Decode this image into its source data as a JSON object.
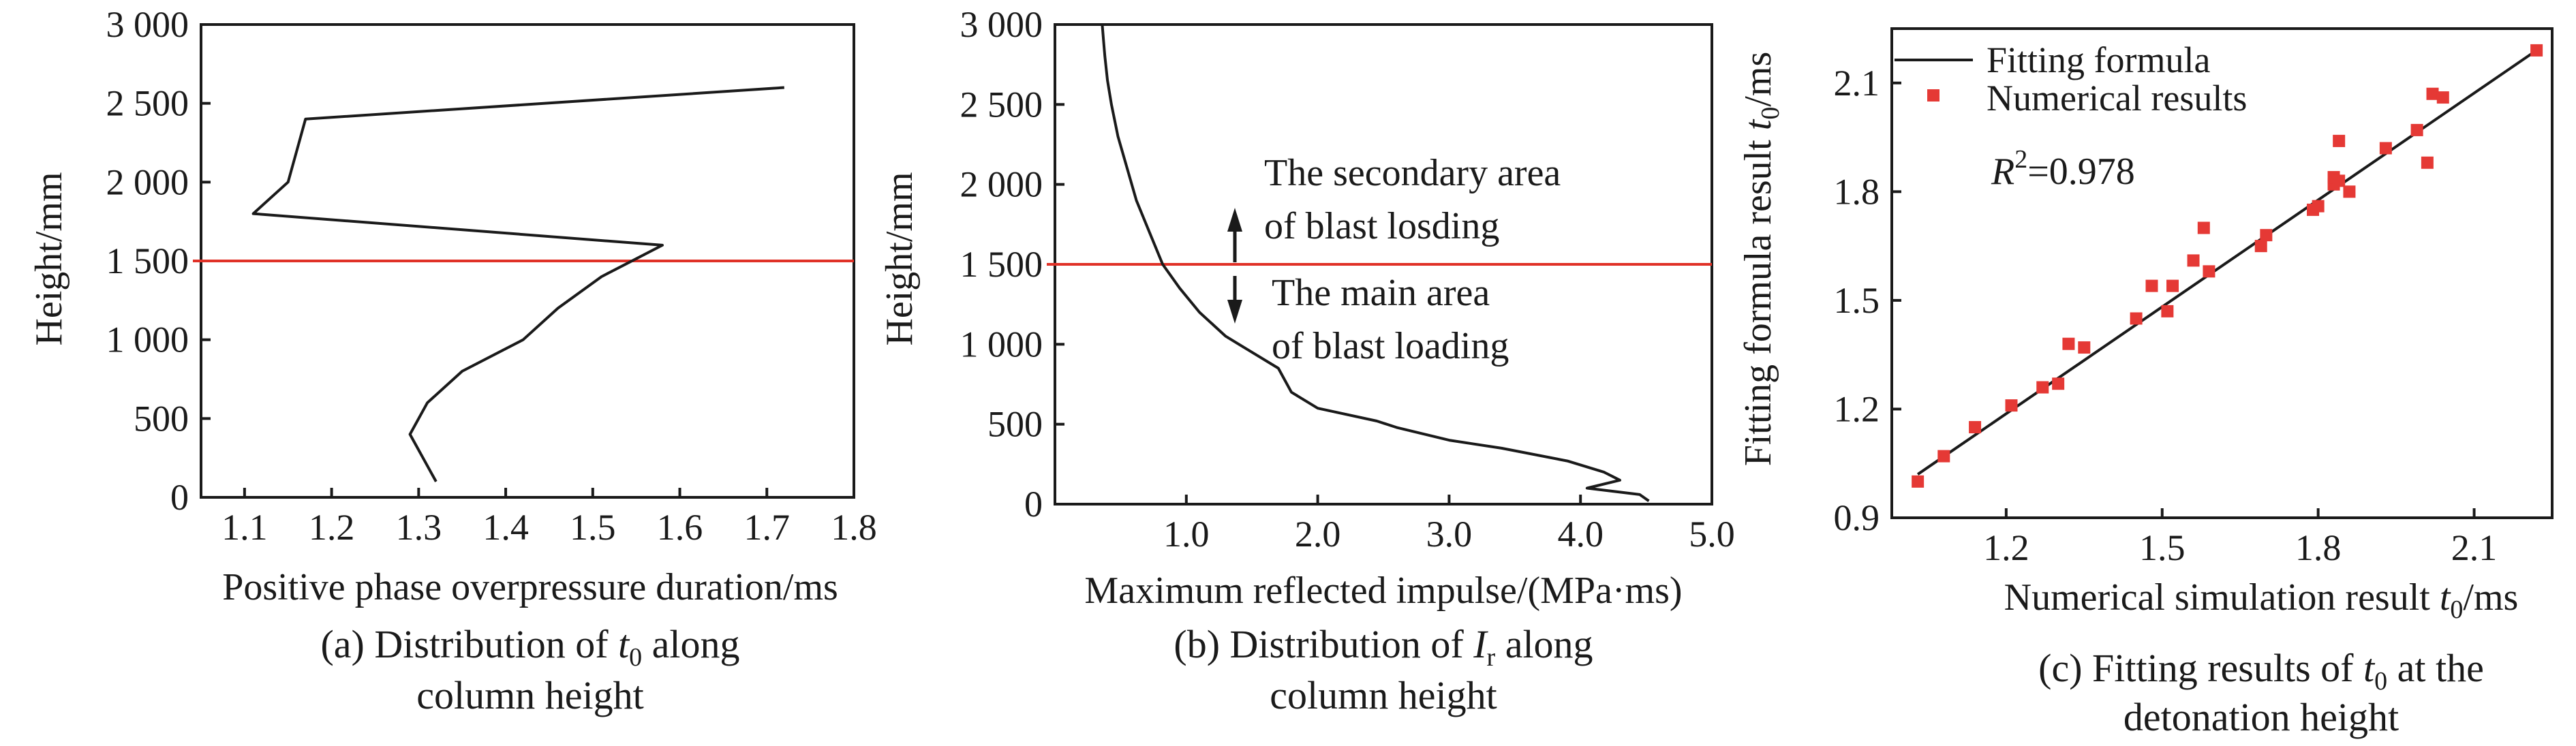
{
  "figure": {
    "panels": [
      {
        "id": "a",
        "caption_line1_pre": "(a) Distribution of ",
        "caption_symbol": "t",
        "caption_symbol_sub": "0",
        "caption_line1_post": " along",
        "caption_line2": "column height"
      },
      {
        "id": "b",
        "caption_line1_pre": "(b) Distribution of ",
        "caption_symbol": "I",
        "caption_symbol_sub": "r",
        "caption_line1_post": " along",
        "caption_line2": "column height",
        "annotation_upper_1": "The secondary area",
        "annotation_upper_2": "of blast losding",
        "annotation_lower_1": "The main area",
        "annotation_lower_2": "of blast loading"
      },
      {
        "id": "c",
        "caption_line1_pre": "(c) Fitting results of ",
        "caption_symbol": "t",
        "caption_symbol_sub": "0",
        "caption_line1_post": " at the",
        "caption_line2": "detonation height",
        "r2_symbol": "R",
        "r2_sup": "2",
        "r2_value": "=0.978"
      }
    ]
  },
  "chart_data": [
    {
      "type": "line",
      "xlabel": "Positive phase overpressure duration/ms",
      "ylabel": "Height/mm",
      "xlim": [
        1.05,
        1.8
      ],
      "ylim": [
        0,
        3000
      ],
      "x_ticks": [
        1.1,
        1.2,
        1.3,
        1.4,
        1.5,
        1.6,
        1.7,
        1.8
      ],
      "x_tick_labels": [
        "1.1",
        "1.2",
        "1.3",
        "1.4",
        "1.5",
        "1.6",
        "1.7",
        "1.8"
      ],
      "y_ticks": [
        0,
        500,
        1000,
        1500,
        2000,
        2500,
        3000
      ],
      "y_tick_labels": [
        "0",
        "500",
        "1 000",
        "1 500",
        "2 000",
        "2 500",
        "3 000"
      ],
      "reference_line": {
        "y": 1500,
        "color": "#e03127"
      },
      "series": [
        {
          "color": "#1a1a1a",
          "x": [
            1.32,
            1.31,
            1.29,
            1.31,
            1.35,
            1.42,
            1.46,
            1.51,
            1.58,
            1.11,
            1.15,
            1.16,
            1.17,
            1.72
          ],
          "y": [
            100,
            200,
            400,
            600,
            800,
            1000,
            1200,
            1400,
            1600,
            1800,
            2000,
            2200,
            2400,
            2600
          ]
        }
      ],
      "grid": false
    },
    {
      "type": "line",
      "xlabel": "Maximum reflected impulse/(MPa·ms)",
      "ylabel": "Height/mm",
      "xlim": [
        0,
        5
      ],
      "ylim": [
        0,
        3000
      ],
      "x_ticks": [
        1,
        2,
        3,
        4,
        5
      ],
      "x_tick_labels": [
        "1.0",
        "2.0",
        "3.0",
        "4.0",
        "5.0"
      ],
      "y_ticks": [
        0,
        500,
        1000,
        1500,
        2000,
        2500,
        3000
      ],
      "y_tick_labels": [
        "0",
        "500",
        "1 000",
        "1 500",
        "2 000",
        "2 500",
        "3 000"
      ],
      "reference_line": {
        "y": 1500,
        "color": "#e03127"
      },
      "series": [
        {
          "color": "#1a1a1a",
          "x": [
            4.52,
            4.45,
            4.05,
            4.3,
            4.18,
            3.9,
            3.4,
            3.0,
            2.6,
            2.45,
            2.0,
            1.8,
            1.7,
            1.5,
            1.3,
            1.1,
            0.95,
            0.82,
            0.72,
            0.62,
            0.55,
            0.48,
            0.43,
            0.4,
            0.38,
            0.37,
            0.36
          ],
          "y": [
            20,
            60,
            100,
            150,
            200,
            270,
            350,
            400,
            480,
            520,
            600,
            700,
            850,
            950,
            1050,
            1200,
            1350,
            1500,
            1700,
            1900,
            2100,
            2300,
            2500,
            2650,
            2800,
            2900,
            3000
          ]
        }
      ],
      "grid": false
    },
    {
      "type": "scatter",
      "xlabel": "Numerical simulation result t0/ms",
      "ylabel": "Fitting formula result t0/ms",
      "xlim": [
        0.98,
        2.25
      ],
      "ylim": [
        0.9,
        2.25
      ],
      "x_ticks": [
        1.2,
        1.5,
        1.8,
        2.1
      ],
      "x_tick_labels": [
        "1.2",
        "1.5",
        "1.8",
        "2.1"
      ],
      "y_ticks": [
        0.9,
        1.2,
        1.5,
        1.8,
        2.1
      ],
      "y_tick_labels": [
        "0.9",
        "1.2",
        "1.5",
        "1.8",
        "2.1"
      ],
      "legend": [
        {
          "label": "Fitting formula",
          "kind": "line",
          "color": "#1a1a1a"
        },
        {
          "label": "Numerical results",
          "kind": "marker",
          "color": "#e53935"
        }
      ],
      "legend_position": "top-left",
      "series": [
        {
          "kind": "line",
          "color": "#1a1a1a",
          "x": [
            1.03,
            2.22
          ],
          "y": [
            1.02,
            2.19
          ]
        },
        {
          "kind": "marker",
          "color": "#e53935",
          "x": [
            1.03,
            1.08,
            1.14,
            1.21,
            1.27,
            1.3,
            1.32,
            1.35,
            1.45,
            1.48,
            1.51,
            1.52,
            1.56,
            1.58,
            1.59,
            1.69,
            1.7,
            1.79,
            1.8,
            1.83,
            1.83,
            1.84,
            1.84,
            1.86,
            1.93,
            1.99,
            2.01,
            2.02,
            2.04,
            2.22
          ],
          "y": [
            1.0,
            1.07,
            1.15,
            1.21,
            1.26,
            1.27,
            1.38,
            1.37,
            1.45,
            1.54,
            1.47,
            1.54,
            1.61,
            1.7,
            1.58,
            1.65,
            1.68,
            1.75,
            1.76,
            1.82,
            1.84,
            1.83,
            1.94,
            1.8,
            1.92,
            1.97,
            1.88,
            2.07,
            2.06,
            2.19
          ]
        }
      ],
      "grid": false
    }
  ]
}
